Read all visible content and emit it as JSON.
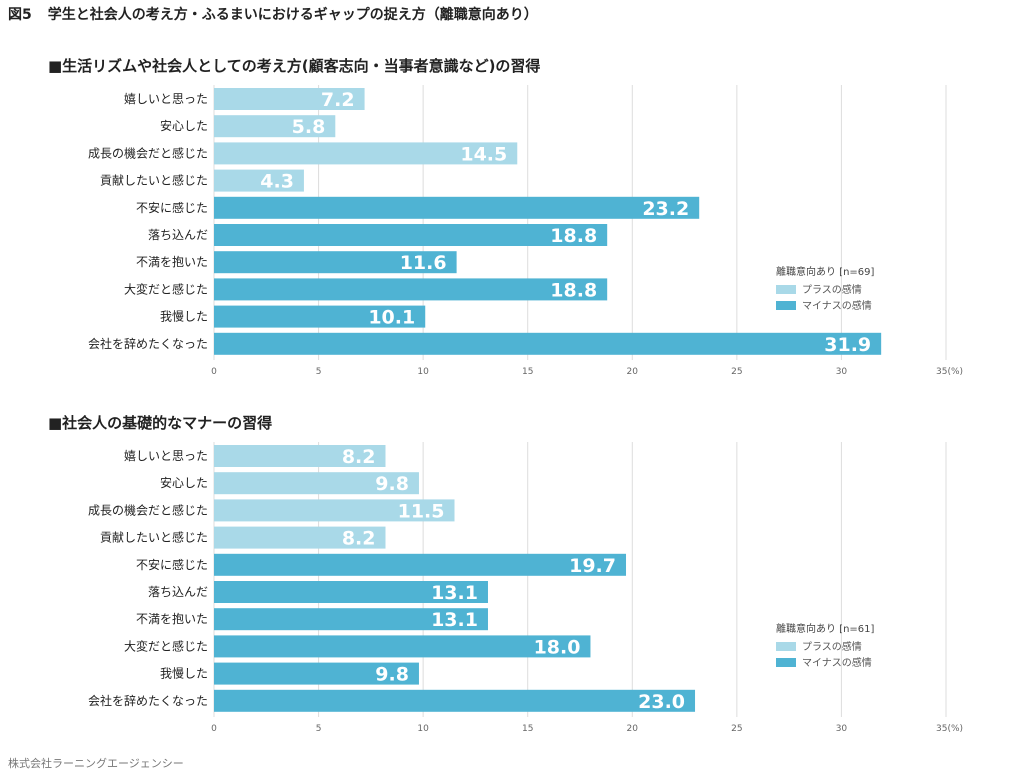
{
  "figure": {
    "number": "図5",
    "title": "学生と社会人の考え方・ふるまいにおけるギャップの捉え方（離職意向あり）"
  },
  "source": "株式会社ラーニングエージェンシー",
  "colors": {
    "plus": "#a9d9e8",
    "minus": "#4fb3d3",
    "grid": "#dddddd"
  },
  "chart_data": [
    {
      "type": "bar",
      "orientation": "horizontal",
      "title": "■生活リズムや社会人としての考え方(顧客志向・当事者意識など)の習得",
      "categories": [
        "嬉しいと思った",
        "安心した",
        "成長の機会だと感じた",
        "貢献したいと感じた",
        "不安に感じた",
        "落ち込んだ",
        "不満を抱いた",
        "大変だと感じた",
        "我慢した",
        "会社を辞めたくなった"
      ],
      "values": [
        7.2,
        5.8,
        14.5,
        4.3,
        23.2,
        18.8,
        11.6,
        18.8,
        10.1,
        31.9
      ],
      "value_labels": [
        "7.2",
        "5.8",
        "14.5",
        "4.3",
        "23.2",
        "18.8",
        "11.6",
        "18.8",
        "10.1",
        "31.9"
      ],
      "groups": [
        "plus",
        "plus",
        "plus",
        "plus",
        "minus",
        "minus",
        "minus",
        "minus",
        "minus",
        "minus"
      ],
      "xlim": [
        0,
        35
      ],
      "ticks": [
        "0",
        "5",
        "10",
        "15",
        "20",
        "25",
        "30",
        "35(%)"
      ],
      "legend": {
        "title": "離職意向あり [n=69]",
        "items": [
          {
            "key": "plus",
            "label": "プラスの感情"
          },
          {
            "key": "minus",
            "label": "マイナスの感情"
          }
        ],
        "placement": "right"
      }
    },
    {
      "type": "bar",
      "orientation": "horizontal",
      "title": "■社会人の基礎的なマナーの習得",
      "categories": [
        "嬉しいと思った",
        "安心した",
        "成長の機会だと感じた",
        "貢献したいと感じた",
        "不安に感じた",
        "落ち込んだ",
        "不満を抱いた",
        "大変だと感じた",
        "我慢した",
        "会社を辞めたくなった"
      ],
      "values": [
        8.2,
        9.8,
        11.5,
        8.2,
        19.7,
        13.1,
        13.1,
        18.0,
        9.8,
        23.0
      ],
      "value_labels": [
        "8.2",
        "9.8",
        "11.5",
        "8.2",
        "19.7",
        "13.1",
        "13.1",
        "18.0",
        "9.8",
        "23.0"
      ],
      "groups": [
        "plus",
        "plus",
        "plus",
        "plus",
        "minus",
        "minus",
        "minus",
        "minus",
        "minus",
        "minus"
      ],
      "xlim": [
        0,
        35
      ],
      "ticks": [
        "0",
        "5",
        "10",
        "15",
        "20",
        "25",
        "30",
        "35(%)"
      ],
      "legend": {
        "title": "離職意向あり [n=61]",
        "items": [
          {
            "key": "plus",
            "label": "プラスの感情"
          },
          {
            "key": "minus",
            "label": "マイナスの感情"
          }
        ],
        "placement": "right"
      }
    }
  ]
}
